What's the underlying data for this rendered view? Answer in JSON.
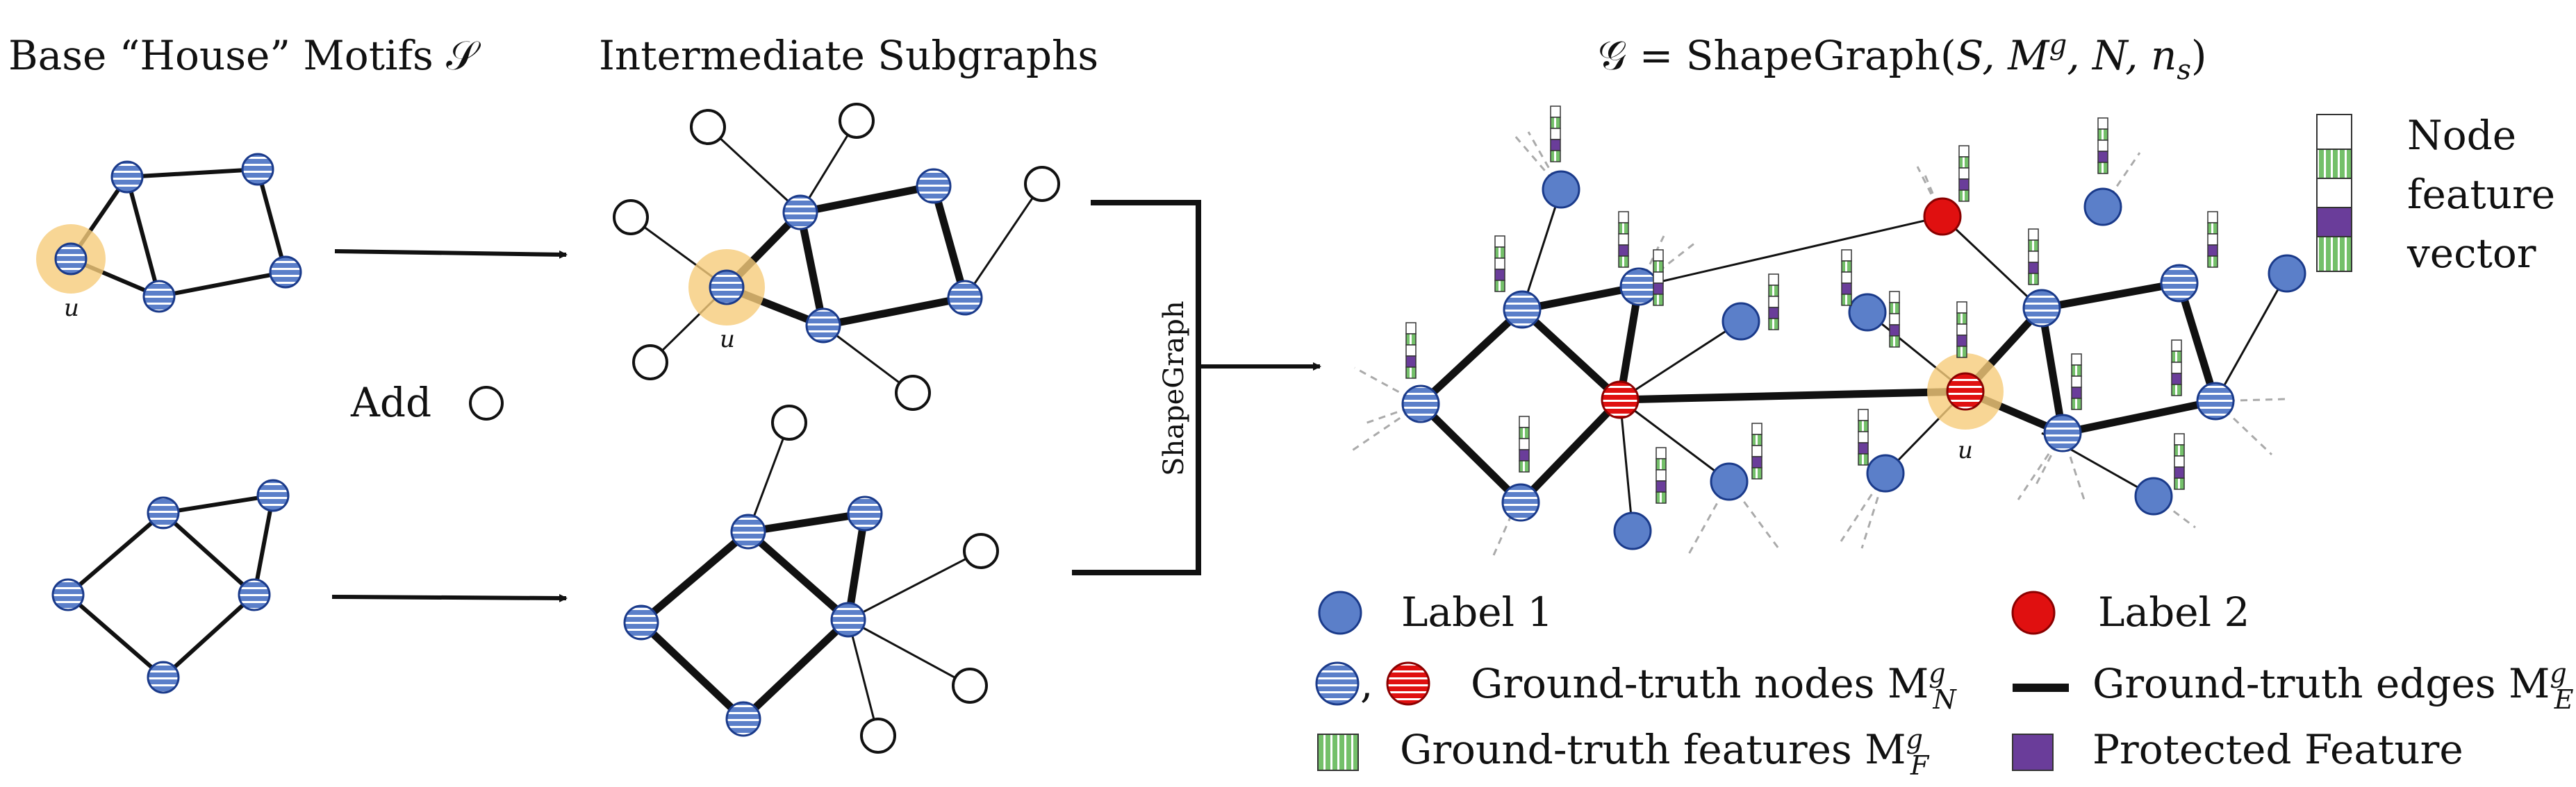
{
  "headings": {
    "base": "Base “House” Motifs 𝒮",
    "intermediate": "Intermediate Subgraphs",
    "graph_prefix": "𝒢 = ShapeGraph(",
    "graph_args": "S, M",
    "graph_sup": "g",
    "graph_rest": ", N, n",
    "graph_sub": "s",
    "graph_close": ")"
  },
  "labels": {
    "u": "u",
    "add": "Add",
    "shapegraph": "ShapeGraph"
  },
  "feature_legend": {
    "line1": "Node",
    "line2": "feature",
    "line3": "vector"
  },
  "legend": {
    "label1": "Label 1",
    "label2": "Label 2",
    "comma": ",",
    "gt_nodes": "Ground-truth nodes M",
    "gt_nodes_sup": "g",
    "gt_nodes_sub": "N",
    "gt_edges": "Ground-truth edges M",
    "gt_edges_sup": "g",
    "gt_edges_sub": "E",
    "gt_features": "Ground-truth features M",
    "gt_features_sup": "g",
    "gt_features_sub": "F",
    "protected": "Protected Feature"
  },
  "colors": {
    "blue_node": "#5b7fc9",
    "blue_stripe": "#ffffff",
    "red_node": "#e01010",
    "highlight": "#f6cc7a",
    "green": "#74c06a",
    "purple": "#6a3d9a",
    "edge": "#111111"
  }
}
